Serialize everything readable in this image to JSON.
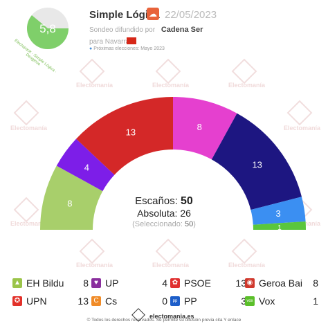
{
  "header": {
    "score": "5,8",
    "score_caption": "Electopack · Simple Lógica · Desglose",
    "pollster": "Simple Lógica",
    "date": "22/05/2023",
    "spread_prefix": "Sondeo difundido por",
    "media": "Cadena Ser",
    "for_prefix": "para Navarra",
    "next_elections": "Próximas elecciones: Mayo 2023"
  },
  "summary": {
    "seats_label": "Escaños:",
    "seats_total": "50",
    "majority_label": "Absoluta: 26",
    "selected_prefix": "(Seleccionado:",
    "selected_value": "50",
    "selected_suffix": ")"
  },
  "chart_data": {
    "type": "hemicycle",
    "total_seats": 50,
    "majority": 26,
    "series": [
      {
        "name": "EH Bildu",
        "value": 8,
        "color": "#a8cf6b"
      },
      {
        "name": "UP",
        "value": 4,
        "color": "#7d1ee8"
      },
      {
        "name": "PSOE",
        "value": 13,
        "color": "#d42828"
      },
      {
        "name": "Geroa Bai",
        "value": 8,
        "color": "#e540cf"
      },
      {
        "name": "UPN",
        "value": 13,
        "color": "#1d1681"
      },
      {
        "name": "PP",
        "value": 3,
        "color": "#3b8ff2"
      },
      {
        "name": "Vox",
        "value": 1,
        "color": "#5ac63c"
      }
    ]
  },
  "legend": [
    {
      "name": "EH Bildu",
      "seats": "8",
      "color": "#9bc44a",
      "icon": "bildu-icon"
    },
    {
      "name": "UP",
      "seats": "4",
      "color": "#8a2f9d",
      "icon": "up-icon"
    },
    {
      "name": "PSOE",
      "seats": "13",
      "color": "#e03030",
      "icon": "psoe-icon"
    },
    {
      "name": "Geroa Bai",
      "seats": "8",
      "color": "#d0392d",
      "icon": "geroabai-icon"
    },
    {
      "name": "UPN",
      "seats": "13",
      "color": "#e2312a",
      "icon": "upn-icon"
    },
    {
      "name": "Cs",
      "seats": "0",
      "color": "#f08b27",
      "icon": "cs-icon"
    },
    {
      "name": "PP",
      "seats": "3",
      "color": "#1d5ec9",
      "icon": "pp-icon"
    },
    {
      "name": "Vox",
      "seats": "1",
      "color": "#5bbf2a",
      "icon": "vox-icon"
    }
  ],
  "footer": {
    "site": "electomania.es",
    "rights": "© Todos los derechos reservados. Se permite su difusión previa cita Y enlace"
  },
  "watermark": "Electomanía"
}
